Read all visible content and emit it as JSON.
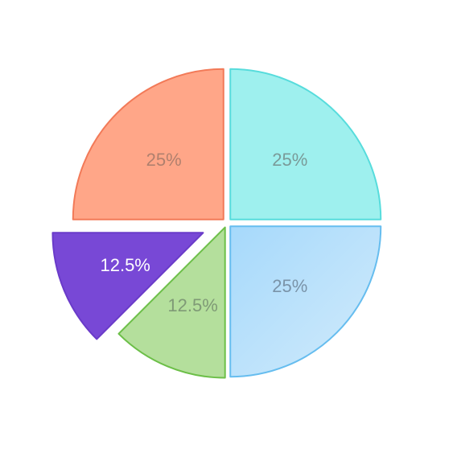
{
  "chart_data": {
    "type": "pie",
    "title": "",
    "slices": [
      {
        "value": 25,
        "label": "25%",
        "fill": "#9ef0ee",
        "stroke": "#57dcdc",
        "label_color": "#7a9a98"
      },
      {
        "value": 25,
        "label": "25%",
        "fill": "#a6d9fb",
        "fill_gradient_end": "#d2ebfb",
        "stroke": "#66bdef",
        "label_color": "#7a93a8"
      },
      {
        "value": 12.5,
        "label": "12.5%",
        "fill": "#b4df9c",
        "stroke": "#6cbf48",
        "label_color": "#7f9a76"
      },
      {
        "value": 12.5,
        "label": "12.5%",
        "fill": "#7848d6",
        "stroke": "#6a3bc9",
        "label_color": "#ffffff",
        "exploded": true
      },
      {
        "value": 25,
        "label": "25%",
        "fill": "#ffa688",
        "stroke": "#f27a58",
        "label_color": "#b0806e"
      }
    ]
  }
}
